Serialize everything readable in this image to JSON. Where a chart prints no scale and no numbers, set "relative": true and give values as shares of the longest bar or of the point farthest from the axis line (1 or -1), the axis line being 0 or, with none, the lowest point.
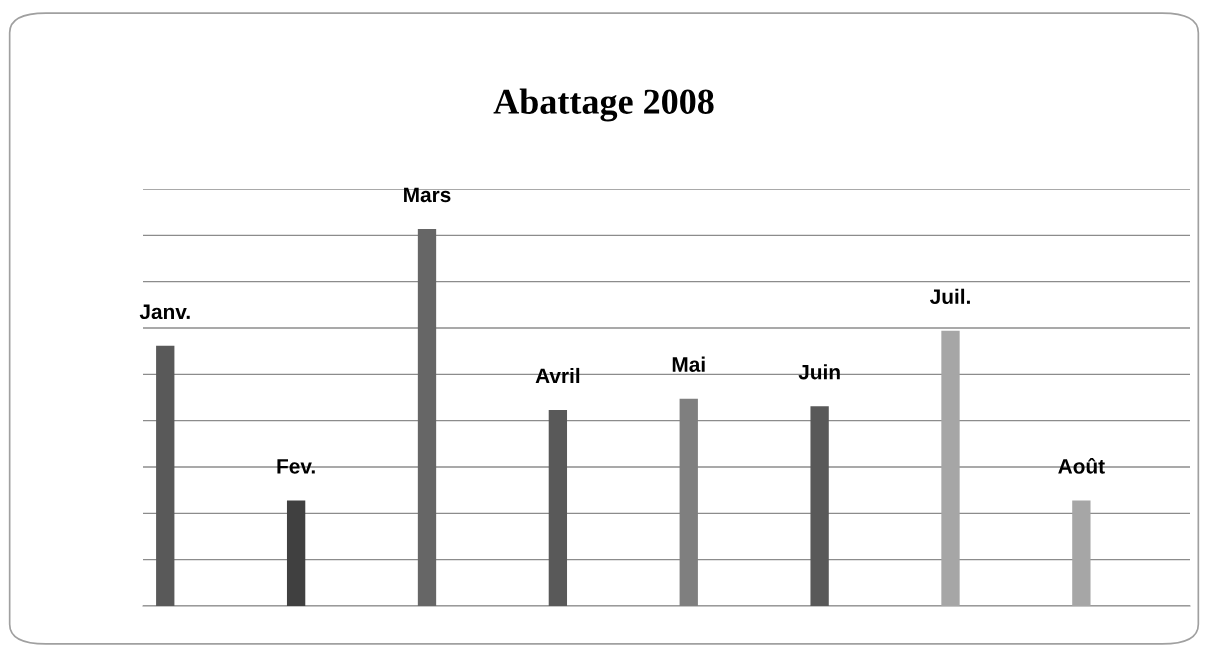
{
  "chart_data": {
    "type": "bar",
    "title": "Abattage 2008",
    "relative": true,
    "grid": "y",
    "categories": [
      "Janv.",
      "Fev.",
      "Mars",
      "Avril",
      "Mai",
      "Juin",
      "Juil.",
      "Août"
    ],
    "values": [
      0.69,
      0.28,
      1,
      0.52,
      0.55,
      0.53,
      0.73,
      0.28
    ],
    "colors": [
      "#595959",
      "#404040",
      "#666666",
      "#595959",
      "#7f7f7f",
      "#595959",
      "#a6a6a6",
      "#a6a6a6"
    ],
    "tick_labels": false,
    "legend": false
  }
}
